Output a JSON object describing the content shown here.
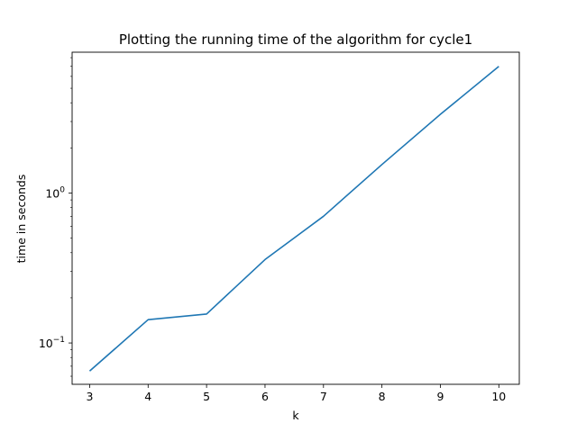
{
  "chart_data": {
    "type": "line",
    "title": "Plotting the running time of the algorithm for cycle1",
    "xlabel": "k",
    "ylabel": "time in seconds",
    "x": [
      3,
      4,
      5,
      6,
      7,
      8,
      9,
      10
    ],
    "series": [
      {
        "values": [
          0.065,
          0.143,
          0.156,
          0.36,
          0.7,
          1.55,
          3.35,
          7.0
        ],
        "color": "#1f77b4"
      }
    ],
    "xlim": [
      2.7,
      10.35
    ],
    "ylim": [
      0.053,
      8.7
    ],
    "yscale": "log",
    "xticks": [
      3,
      4,
      5,
      6,
      7,
      8,
      9,
      10
    ],
    "yticks": [
      {
        "base": "10",
        "exponent": "−1",
        "value": 0.1
      },
      {
        "base": "10",
        "exponent": "0",
        "value": 1
      }
    ],
    "grid": false,
    "legend": "none"
  }
}
